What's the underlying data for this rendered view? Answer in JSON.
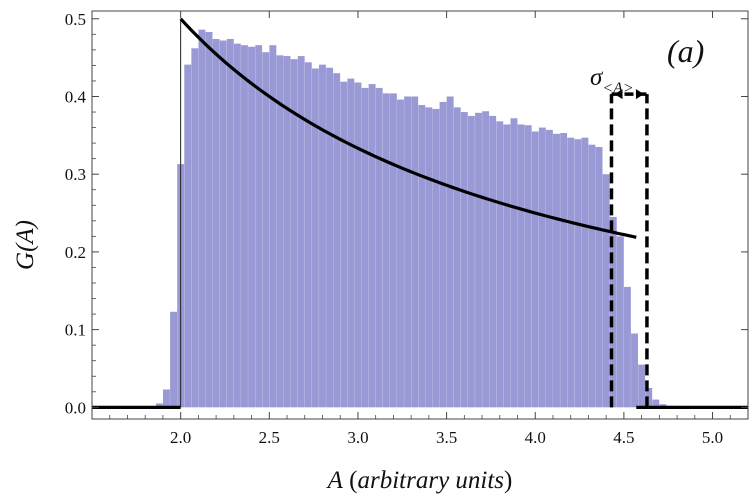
{
  "chart_data": {
    "type": "bar",
    "panel_label": "(a)",
    "xlabel": {
      "symbol": "A",
      "rest": " (",
      "units": "arbitrary units",
      "close": ")"
    },
    "ylabel": "G(A)",
    "xlim": [
      1.5,
      5.2
    ],
    "ylim": [
      -0.015,
      0.51
    ],
    "x_ticks": [
      "2.0",
      "2.5",
      "3.0",
      "3.5",
      "4.0",
      "4.5",
      "5.0"
    ],
    "y_ticks": [
      "0.0",
      "0.1",
      "0.2",
      "0.3",
      "0.4",
      "0.5"
    ],
    "bar_width": 0.039,
    "bars": [
      {
        "x": 1.88,
        "y": 0.005
      },
      {
        "x": 1.92,
        "y": 0.023
      },
      {
        "x": 1.96,
        "y": 0.123
      },
      {
        "x": 2.0,
        "y": 0.313
      },
      {
        "x": 2.04,
        "y": 0.441
      },
      {
        "x": 2.08,
        "y": 0.462
      },
      {
        "x": 2.12,
        "y": 0.486
      },
      {
        "x": 2.16,
        "y": 0.483
      },
      {
        "x": 2.2,
        "y": 0.474
      },
      {
        "x": 2.24,
        "y": 0.472
      },
      {
        "x": 2.28,
        "y": 0.474
      },
      {
        "x": 2.32,
        "y": 0.468
      },
      {
        "x": 2.36,
        "y": 0.466
      },
      {
        "x": 2.4,
        "y": 0.464
      },
      {
        "x": 2.44,
        "y": 0.466
      },
      {
        "x": 2.48,
        "y": 0.457
      },
      {
        "x": 2.52,
        "y": 0.466
      },
      {
        "x": 2.56,
        "y": 0.453
      },
      {
        "x": 2.6,
        "y": 0.452
      },
      {
        "x": 2.64,
        "y": 0.448
      },
      {
        "x": 2.68,
        "y": 0.452
      },
      {
        "x": 2.72,
        "y": 0.444
      },
      {
        "x": 2.76,
        "y": 0.436
      },
      {
        "x": 2.8,
        "y": 0.441
      },
      {
        "x": 2.84,
        "y": 0.437
      },
      {
        "x": 2.88,
        "y": 0.43
      },
      {
        "x": 2.92,
        "y": 0.419
      },
      {
        "x": 2.96,
        "y": 0.423
      },
      {
        "x": 3.0,
        "y": 0.418
      },
      {
        "x": 3.04,
        "y": 0.411
      },
      {
        "x": 3.08,
        "y": 0.416
      },
      {
        "x": 3.12,
        "y": 0.411
      },
      {
        "x": 3.16,
        "y": 0.404
      },
      {
        "x": 3.2,
        "y": 0.404
      },
      {
        "x": 3.24,
        "y": 0.396
      },
      {
        "x": 3.28,
        "y": 0.4
      },
      {
        "x": 3.32,
        "y": 0.4
      },
      {
        "x": 3.36,
        "y": 0.389
      },
      {
        "x": 3.4,
        "y": 0.386
      },
      {
        "x": 3.44,
        "y": 0.384
      },
      {
        "x": 3.48,
        "y": 0.393
      },
      {
        "x": 3.52,
        "y": 0.4
      },
      {
        "x": 3.56,
        "y": 0.386
      },
      {
        "x": 3.6,
        "y": 0.38
      },
      {
        "x": 3.64,
        "y": 0.375
      },
      {
        "x": 3.68,
        "y": 0.379
      },
      {
        "x": 3.72,
        "y": 0.381
      },
      {
        "x": 3.76,
        "y": 0.375
      },
      {
        "x": 3.8,
        "y": 0.368
      },
      {
        "x": 3.84,
        "y": 0.364
      },
      {
        "x": 3.88,
        "y": 0.372
      },
      {
        "x": 3.92,
        "y": 0.364
      },
      {
        "x": 3.96,
        "y": 0.363
      },
      {
        "x": 4.0,
        "y": 0.355
      },
      {
        "x": 4.04,
        "y": 0.36
      },
      {
        "x": 4.08,
        "y": 0.357
      },
      {
        "x": 4.12,
        "y": 0.352
      },
      {
        "x": 4.16,
        "y": 0.353
      },
      {
        "x": 4.2,
        "y": 0.347
      },
      {
        "x": 4.24,
        "y": 0.345
      },
      {
        "x": 4.28,
        "y": 0.347
      },
      {
        "x": 4.32,
        "y": 0.338
      },
      {
        "x": 4.36,
        "y": 0.335
      },
      {
        "x": 4.4,
        "y": 0.3
      },
      {
        "x": 4.44,
        "y": 0.245
      },
      {
        "x": 4.48,
        "y": 0.22
      },
      {
        "x": 4.52,
        "y": 0.155
      },
      {
        "x": 4.56,
        "y": 0.095
      },
      {
        "x": 4.6,
        "y": 0.055
      },
      {
        "x": 4.64,
        "y": 0.025
      },
      {
        "x": 4.68,
        "y": 0.01
      },
      {
        "x": 4.72,
        "y": 0.004
      },
      {
        "x": 4.76,
        "y": 0.002
      }
    ],
    "fit_curve": {
      "x_start": 2.0,
      "x_end": 4.57,
      "coefficient": 1.0,
      "power": -1
    },
    "baseline_segments": [
      [
        1.5,
        2.0
      ],
      [
        4.57,
        5.2
      ]
    ],
    "vertical_line_x": 2.0,
    "sigma_box": {
      "x_left": 4.43,
      "x_right": 4.63,
      "y_top": 0.403,
      "label": "σ",
      "subscript": "<A>"
    },
    "colors": {
      "bar": "#8b8bd0",
      "curve": "#000000",
      "axis": "#444444"
    }
  }
}
